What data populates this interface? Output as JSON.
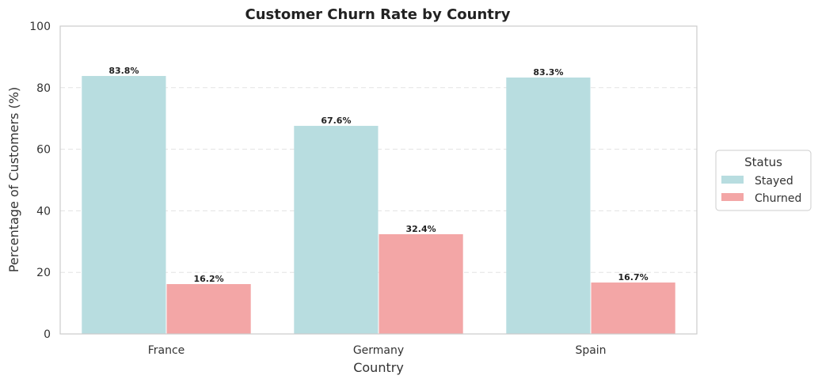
{
  "chart_data": {
    "type": "bar",
    "title": "Customer Churn Rate by Country",
    "xlabel": "Country",
    "ylabel": "Percentage of Customers (%)",
    "categories": [
      "France",
      "Germany",
      "Spain"
    ],
    "series": [
      {
        "name": "Stayed",
        "color": "#b8dde0",
        "values": [
          83.8,
          67.6,
          83.3
        ],
        "labels": [
          "83.8%",
          "67.6%",
          "83.3%"
        ]
      },
      {
        "name": "Churned",
        "color": "#f3a6a6",
        "values": [
          16.2,
          32.4,
          16.7
        ],
        "labels": [
          "16.2%",
          "32.4%",
          "16.7%"
        ]
      }
    ],
    "ylim": [
      0,
      100
    ],
    "yticks": [
      0,
      20,
      40,
      60,
      80,
      100
    ],
    "grid": "horizontal-dashed",
    "legend": {
      "title": "Status",
      "placement": "right-outside"
    }
  }
}
